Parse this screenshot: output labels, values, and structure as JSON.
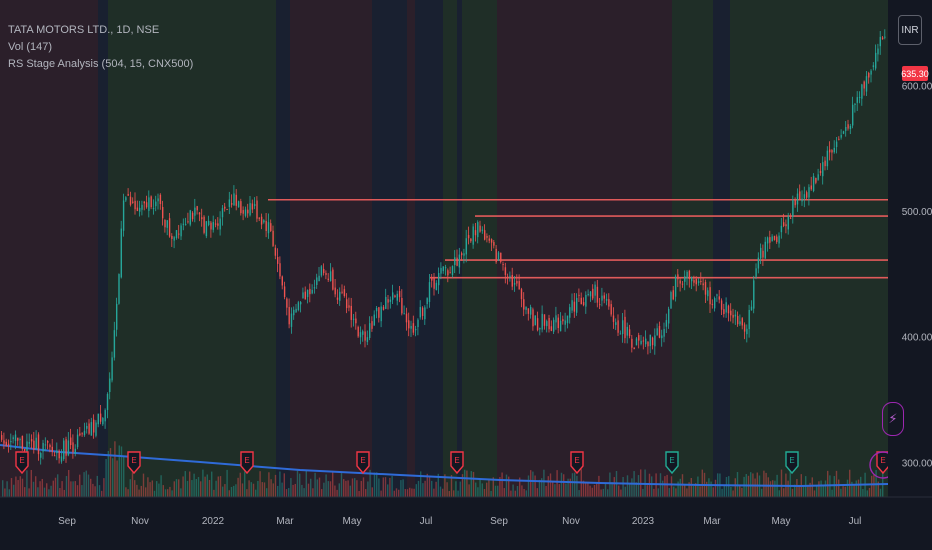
{
  "legend": {
    "symbol": "TATA MOTORS LTD., 1D, NSE",
    "volume": "Vol (147)",
    "indicator": "RS Stage Analysis (504, 15, CNX500)"
  },
  "currency": "INR",
  "last_price": "635.30",
  "colors": {
    "background": "#131722",
    "stage_bear": "#2b1f2a",
    "stage_bull": "#1f2e27",
    "stage_neutral": "#192030",
    "up_candle": "#26a69a",
    "down_candle": "#ef5350",
    "resistance_line": "#e05a5a",
    "volume_ma": "#2f6bd8",
    "earnings_red": "#f23645",
    "earnings_teal": "#22ab94"
  },
  "chart_data": {
    "type": "candlestick",
    "title": "TATA MOTORS LTD., 1D, NSE",
    "x_ticks": [
      "Sep",
      "Nov",
      "2022",
      "Mar",
      "May",
      "Jul",
      "Sep",
      "Nov",
      "2023",
      "Mar",
      "May",
      "Jul"
    ],
    "y_ticks": [
      "300.00",
      "400.00",
      "500.00",
      "600.00"
    ],
    "ylim": [
      282,
      660
    ],
    "price_path": [
      [
        0,
        320
      ],
      [
        10,
        316
      ],
      [
        25,
        314
      ],
      [
        40,
        313
      ],
      [
        53,
        307
      ],
      [
        65,
        312
      ],
      [
        80,
        318
      ],
      [
        95,
        330
      ],
      [
        105,
        345
      ],
      [
        112,
        380
      ],
      [
        118,
        445
      ],
      [
        122,
        515
      ],
      [
        130,
        505
      ],
      [
        140,
        498
      ],
      [
        150,
        510
      ],
      [
        160,
        502
      ],
      [
        170,
        480
      ],
      [
        180,
        490
      ],
      [
        190,
        500
      ],
      [
        200,
        492
      ],
      [
        210,
        485
      ],
      [
        220,
        498
      ],
      [
        230,
        512
      ],
      [
        240,
        500
      ],
      [
        250,
        505
      ],
      [
        260,
        495
      ],
      [
        270,
        485
      ],
      [
        280,
        445
      ],
      [
        290,
        410
      ],
      [
        300,
        430
      ],
      [
        310,
        440
      ],
      [
        320,
        452
      ],
      [
        330,
        448
      ],
      [
        340,
        430
      ],
      [
        350,
        420
      ],
      [
        360,
        398
      ],
      [
        370,
        410
      ],
      [
        380,
        422
      ],
      [
        390,
        432
      ],
      [
        400,
        428
      ],
      [
        410,
        405
      ],
      [
        420,
        418
      ],
      [
        430,
        440
      ],
      [
        440,
        450
      ],
      [
        450,
        455
      ],
      [
        460,
        465
      ],
      [
        470,
        480
      ],
      [
        478,
        490
      ],
      [
        485,
        478
      ],
      [
        495,
        465
      ],
      [
        505,
        455
      ],
      [
        515,
        440
      ],
      [
        525,
        425
      ],
      [
        535,
        410
      ],
      [
        545,
        412
      ],
      [
        555,
        410
      ],
      [
        565,
        418
      ],
      [
        575,
        428
      ],
      [
        585,
        430
      ],
      [
        595,
        435
      ],
      [
        605,
        425
      ],
      [
        615,
        410
      ],
      [
        625,
        405
      ],
      [
        635,
        393
      ],
      [
        645,
        392
      ],
      [
        655,
        400
      ],
      [
        665,
        410
      ],
      [
        675,
        445
      ],
      [
        685,
        448
      ],
      [
        695,
        442
      ],
      [
        705,
        435
      ],
      [
        715,
        428
      ],
      [
        725,
        422
      ],
      [
        735,
        418
      ],
      [
        745,
        408
      ],
      [
        750,
        425
      ],
      [
        760,
        468
      ],
      [
        770,
        475
      ],
      [
        780,
        485
      ],
      [
        790,
        500
      ],
      [
        800,
        512
      ],
      [
        810,
        518
      ],
      [
        820,
        535
      ],
      [
        830,
        548
      ],
      [
        840,
        558
      ],
      [
        850,
        575
      ],
      [
        860,
        595
      ],
      [
        870,
        615
      ],
      [
        878,
        632
      ],
      [
        885,
        640
      ]
    ],
    "resistance_levels": [
      {
        "price": 509,
        "x_start": 268
      },
      {
        "price": 496,
        "x_start": 475
      },
      {
        "price": 461,
        "x_start": 445
      },
      {
        "price": 447,
        "x_start": 430
      }
    ],
    "stage_shading": [
      {
        "from": 0,
        "to": 98,
        "stage": "bear"
      },
      {
        "from": 98,
        "to": 108,
        "stage": "neutral"
      },
      {
        "from": 108,
        "to": 276,
        "stage": "bull"
      },
      {
        "from": 276,
        "to": 290,
        "stage": "neutral"
      },
      {
        "from": 290,
        "to": 372,
        "stage": "bear"
      },
      {
        "from": 372,
        "to": 407,
        "stage": "neutral"
      },
      {
        "from": 407,
        "to": 415,
        "stage": "bear"
      },
      {
        "from": 415,
        "to": 443,
        "stage": "neutral"
      },
      {
        "from": 443,
        "to": 457,
        "stage": "bull"
      },
      {
        "from": 457,
        "to": 462,
        "stage": "neutral"
      },
      {
        "from": 462,
        "to": 497,
        "stage": "bull"
      },
      {
        "from": 497,
        "to": 672,
        "stage": "bear"
      },
      {
        "from": 672,
        "to": 713,
        "stage": "bull"
      },
      {
        "from": 713,
        "to": 730,
        "stage": "neutral"
      },
      {
        "from": 730,
        "to": 748,
        "stage": "bull"
      },
      {
        "from": 748,
        "to": 888,
        "stage": "bull"
      }
    ],
    "earnings_markers": [
      {
        "x": 22,
        "kind": "red"
      },
      {
        "x": 134,
        "kind": "red"
      },
      {
        "x": 247,
        "kind": "red"
      },
      {
        "x": 363,
        "kind": "red"
      },
      {
        "x": 457,
        "kind": "red"
      },
      {
        "x": 577,
        "kind": "red"
      },
      {
        "x": 672,
        "kind": "teal"
      },
      {
        "x": 792,
        "kind": "teal"
      },
      {
        "x": 883,
        "kind": "red"
      }
    ],
    "volume_ma_path": [
      [
        0,
        445
      ],
      [
        60,
        452
      ],
      [
        120,
        456
      ],
      [
        200,
        462
      ],
      [
        300,
        470
      ],
      [
        400,
        475
      ],
      [
        500,
        480
      ],
      [
        600,
        483
      ],
      [
        700,
        485
      ],
      [
        800,
        486
      ],
      [
        888,
        484
      ]
    ]
  }
}
